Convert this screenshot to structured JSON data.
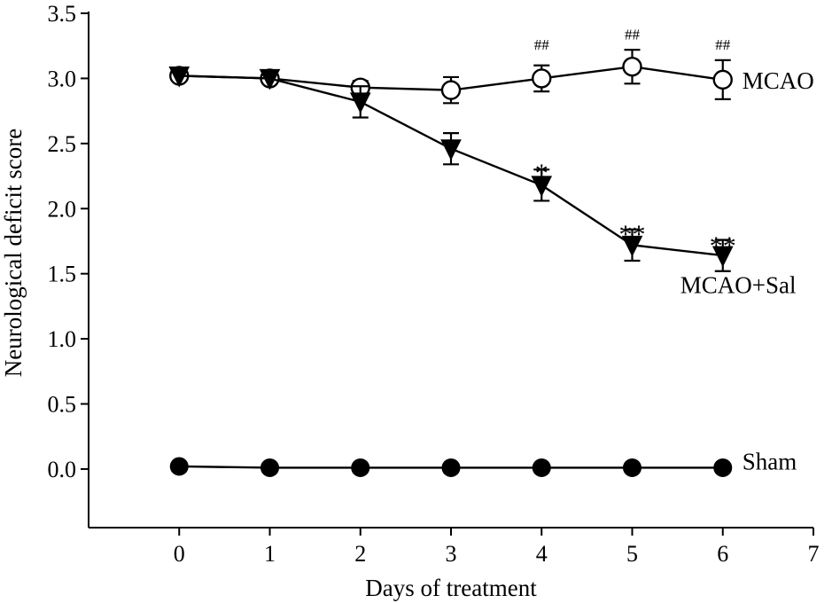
{
  "chart_data": {
    "type": "line",
    "xlabel": "Days of treatment",
    "ylabel": "Neurological deficit score",
    "xlim": [
      -1,
      7
    ],
    "ylim": [
      -0.45,
      3.5
    ],
    "x_ticks": [
      0,
      1,
      2,
      3,
      4,
      5,
      6,
      7
    ],
    "x_tick_labels": [
      "0",
      "1",
      "2",
      "3",
      "4",
      "5",
      "6",
      "7"
    ],
    "y_ticks": [
      0,
      0.5,
      1.0,
      1.5,
      2.0,
      2.5,
      3.0,
      3.5
    ],
    "y_tick_labels": [
      "0.0",
      "0.5",
      "1.0",
      "1.5",
      "2.0",
      "2.5",
      "3.0",
      "3.5"
    ],
    "grid": false,
    "series": [
      {
        "name": "MCAO",
        "marker": "open-circle",
        "x": [
          0,
          1,
          2,
          3,
          4,
          5,
          6
        ],
        "values": [
          3.02,
          3.0,
          2.93,
          2.91,
          3.0,
          3.09,
          2.99
        ],
        "error": [
          0.0,
          0.0,
          0.05,
          0.1,
          0.1,
          0.13,
          0.15
        ],
        "label": "MCAO"
      },
      {
        "name": "MCAO+Sal",
        "marker": "filled-triangle-down",
        "x": [
          0,
          1,
          2,
          3,
          4,
          5,
          6
        ],
        "values": [
          3.02,
          3.0,
          2.82,
          2.46,
          2.18,
          1.72,
          1.64
        ],
        "error": [
          0.0,
          0.0,
          0.12,
          0.12,
          0.12,
          0.12,
          0.12
        ],
        "label": "MCAO+Sal"
      },
      {
        "name": "Sham",
        "marker": "filled-circle",
        "x": [
          0,
          1,
          2,
          3,
          4,
          5,
          6
        ],
        "values": [
          0.02,
          0.01,
          0.01,
          0.01,
          0.01,
          0.01,
          0.01
        ],
        "error": [
          0,
          0,
          0,
          0,
          0,
          0,
          0
        ],
        "label": "Sham"
      }
    ],
    "annotations": [
      {
        "text": "##",
        "x": 4,
        "y": 3.26,
        "style": "hash"
      },
      {
        "text": "##",
        "x": 5,
        "y": 3.34,
        "style": "hash"
      },
      {
        "text": "##",
        "x": 6,
        "y": 3.26,
        "style": "hash"
      },
      {
        "text": "*",
        "x": 4,
        "y": 2.33,
        "style": "star"
      },
      {
        "text": "**",
        "x": 5,
        "y": 1.86,
        "style": "star"
      },
      {
        "text": "**",
        "x": 6,
        "y": 1.77,
        "style": "star"
      }
    ]
  }
}
